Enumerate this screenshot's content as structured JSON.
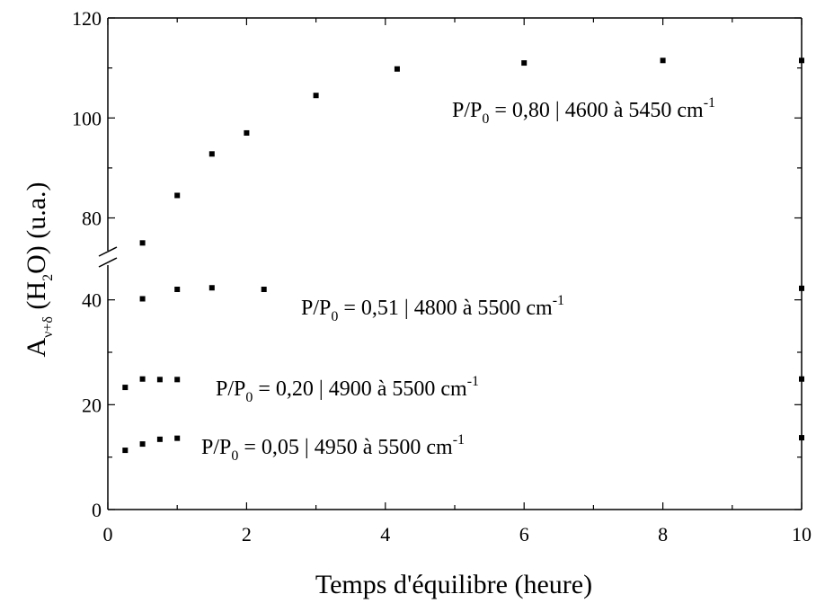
{
  "chart_data": {
    "type": "scatter",
    "title": "",
    "xlabel": "Temps d'équilibre (heure)",
    "ylabel": {
      "prefix": "A",
      "prefix_sub": "ν+δ",
      "open": " (H",
      "open_sub": "2",
      "close": "O) (u.a.)"
    },
    "xlim": [
      0,
      10
    ],
    "x_ticks": [
      0,
      2,
      4,
      6,
      8,
      10
    ],
    "y_ticks_lower": [
      0,
      20,
      40
    ],
    "y_ticks_upper": [
      80,
      100,
      120
    ],
    "y_axis_break": {
      "lower_range": [
        0,
        48
      ],
      "upper_range": [
        72,
        120
      ]
    },
    "series": [
      {
        "label": {
          "a": "P/P",
          "a_sub": "0",
          "b": " = 0,80 | 4600 à 5450 cm",
          "b_sup": "-1"
        },
        "x": [
          0.5,
          1,
          1.5,
          2,
          3,
          4.17,
          6,
          8,
          10
        ],
        "y": [
          75,
          84.5,
          92.8,
          97,
          104.5,
          109.8,
          111,
          111.5,
          111.5
        ]
      },
      {
        "label": {
          "a": "P/P",
          "a_sub": "0",
          "b": " = 0,51 | 4800 à 5500 cm",
          "b_sup": "-1"
        },
        "x": [
          0.5,
          1,
          1.5,
          2.25,
          10
        ],
        "y": [
          40.2,
          42,
          42.3,
          42,
          42.2
        ]
      },
      {
        "label": {
          "a": "P/P",
          "a_sub": "0",
          "b": " = 0,20 | 4900 à 5500 cm",
          "b_sup": "-1"
        },
        "x": [
          0.25,
          0.5,
          0.75,
          1,
          10
        ],
        "y": [
          23.3,
          24.9,
          24.8,
          24.8,
          24.9
        ]
      },
      {
        "label": {
          "a": "P/P",
          "a_sub": "0",
          "b": " = 0,05 | 4950 à 5500 cm",
          "b_sup": "-1"
        },
        "x": [
          0.25,
          0.5,
          0.75,
          1,
          10
        ],
        "y": [
          11.3,
          12.5,
          13.4,
          13.6,
          13.7
        ]
      }
    ]
  }
}
